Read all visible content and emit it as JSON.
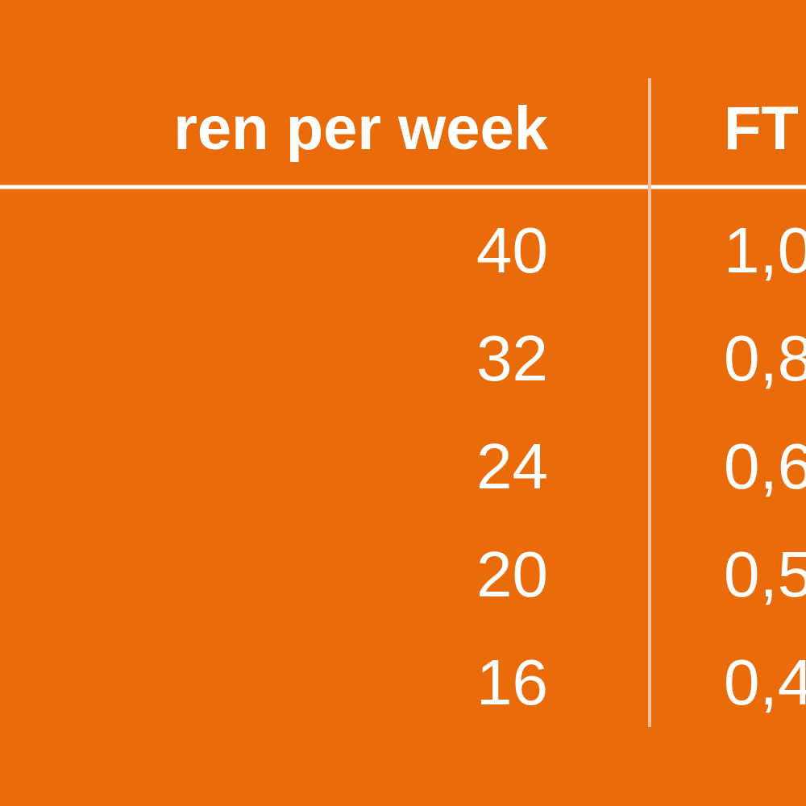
{
  "table": {
    "header": [
      "ren per week",
      "FT"
    ],
    "rows": [
      [
        "40",
        "1,0"
      ],
      [
        "32",
        "0,8"
      ],
      [
        "24",
        "0,6"
      ],
      [
        "20",
        "0,5"
      ],
      [
        "16",
        "0,4"
      ]
    ]
  }
}
